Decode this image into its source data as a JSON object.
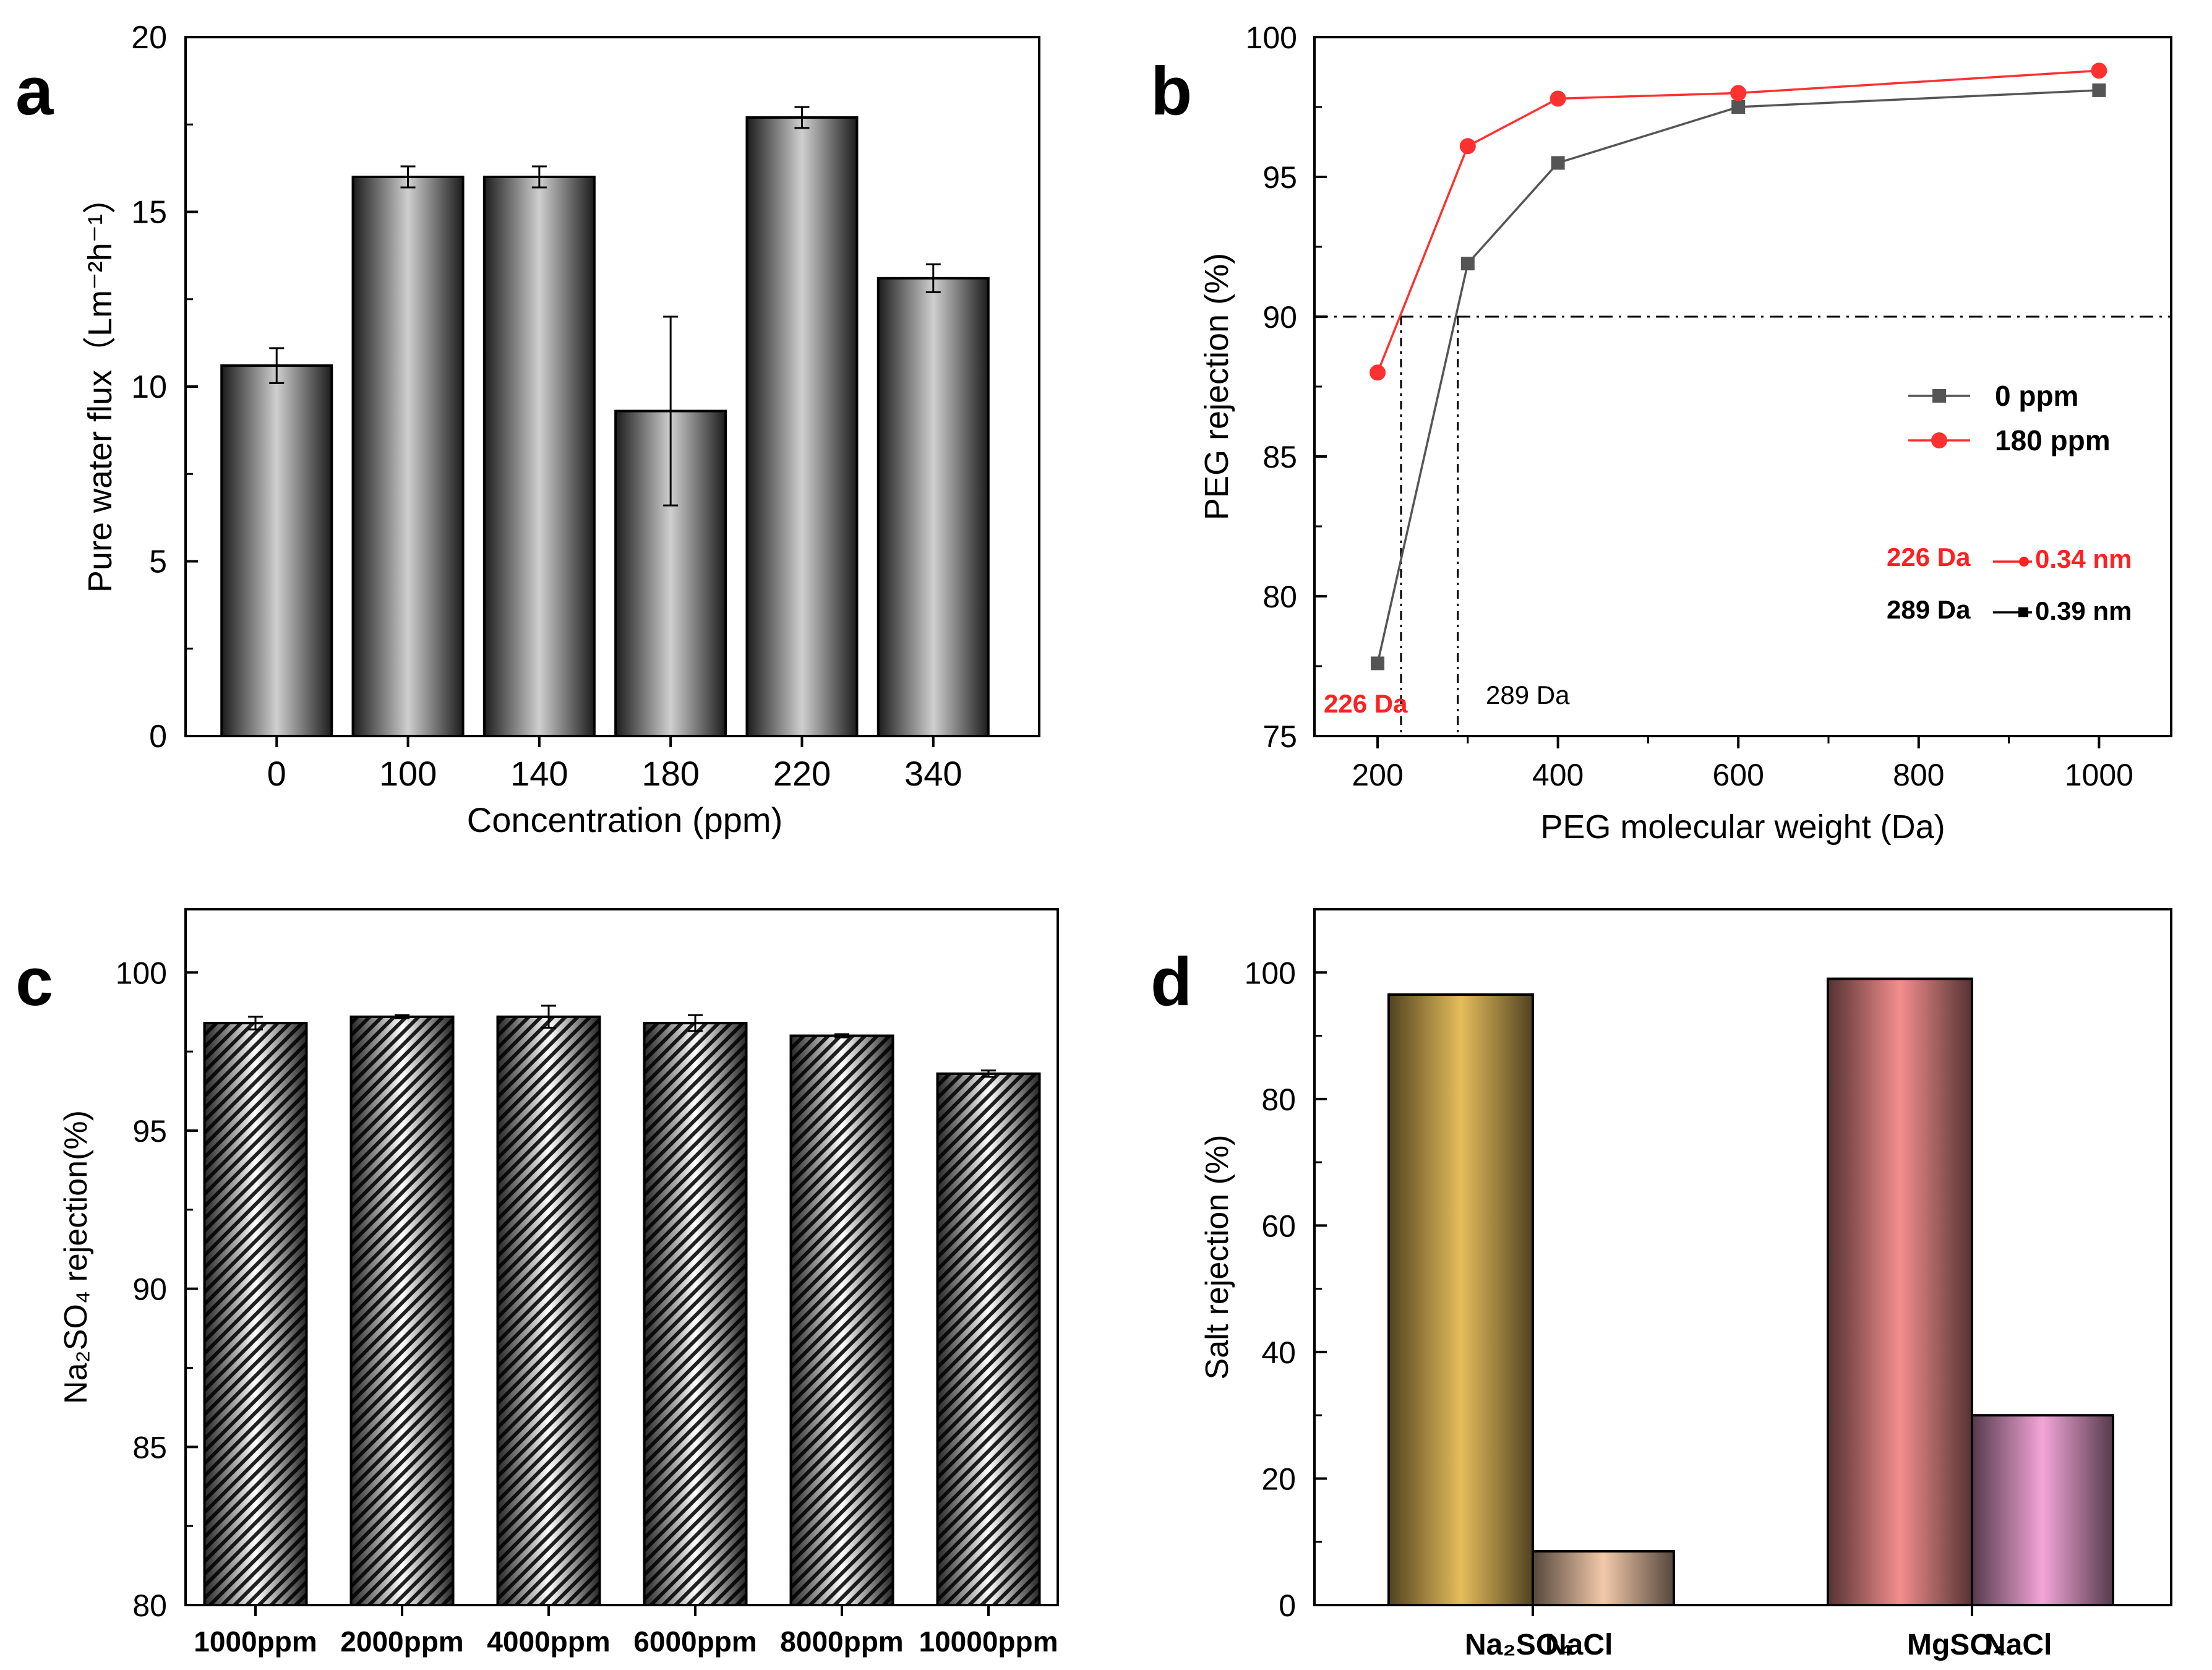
{
  "chart_data": [
    {
      "panel": "a",
      "type": "bar",
      "categories": [
        "0",
        "100",
        "140",
        "180",
        "220",
        "340"
      ],
      "values": [
        10.6,
        16.0,
        16.0,
        9.3,
        17.7,
        13.1
      ],
      "errors": [
        0.5,
        0.3,
        0.3,
        2.7,
        0.3,
        0.4
      ],
      "xlabel": "Concentration (ppm)",
      "ylabel": "Pure water flux（Lm⁻²h⁻¹）",
      "ylim": [
        0,
        20
      ],
      "yticks": [
        "0",
        "5",
        "10",
        "15",
        "20"
      ]
    },
    {
      "panel": "b",
      "type": "line",
      "series": [
        {
          "name": "0 ppm",
          "color": "#555555",
          "x": [
            200,
            300,
            400,
            600,
            1000
          ],
          "y": [
            77.6,
            91.9,
            95.5,
            97.5,
            98.1
          ]
        },
        {
          "name": "180 ppm",
          "color": "#ff3030",
          "x": [
            200,
            300,
            400,
            600,
            1000
          ],
          "y": [
            88.0,
            96.1,
            97.8,
            98.0,
            98.8
          ]
        }
      ],
      "xlabel": "PEG molecular weight (Da)",
      "ylabel": "PEG rejection (%)",
      "xlim": [
        130,
        1080
      ],
      "ylim": [
        75,
        100
      ],
      "xticks": [
        "200",
        "400",
        "600",
        "800",
        "1000"
      ],
      "yticks": [
        "75",
        "80",
        "85",
        "90",
        "95",
        "100"
      ],
      "reference_y": 90,
      "reference_x": [
        226,
        289
      ],
      "annotations": {
        "cut_red": "226 Da",
        "cut_black": "289 Da",
        "pore_red_mw": "226 Da",
        "pore_red_size": "0.34 nm",
        "pore_black_mw": "289 Da",
        "pore_black_size": "0.39 nm"
      }
    },
    {
      "panel": "c",
      "type": "bar",
      "categories": [
        "1000ppm",
        "2000ppm",
        "4000ppm",
        "6000ppm",
        "8000ppm",
        "10000ppm"
      ],
      "values": [
        98.4,
        98.6,
        98.6,
        98.4,
        98.0,
        96.8
      ],
      "errors": [
        0.2,
        0.05,
        0.35,
        0.25,
        0.05,
        0.1
      ],
      "ylabel": "Na₂SO₄ rejection(%)",
      "ylim": [
        80,
        102
      ],
      "yticks": [
        "80",
        "85",
        "90",
        "95",
        "100"
      ]
    },
    {
      "panel": "d",
      "type": "bar",
      "groups": [
        "Na2SO4 / NaCl",
        "MgSO4 / NaCl"
      ],
      "categories": [
        "Na₂SO₄",
        "NaCl",
        "MgSO₄",
        "NaCl"
      ],
      "values": [
        96.5,
        8.5,
        99.0,
        30.0
      ],
      "colors": [
        "#e6bd5c",
        "#f2c9aa",
        "#f38e8e",
        "#f3a5d8"
      ],
      "ylabel": "Salt rejection (%)",
      "ylim": [
        0,
        110
      ],
      "yticks": [
        "0",
        "20",
        "40",
        "60",
        "80",
        "100"
      ]
    }
  ],
  "panel_labels": [
    "a",
    "b",
    "c",
    "d"
  ]
}
